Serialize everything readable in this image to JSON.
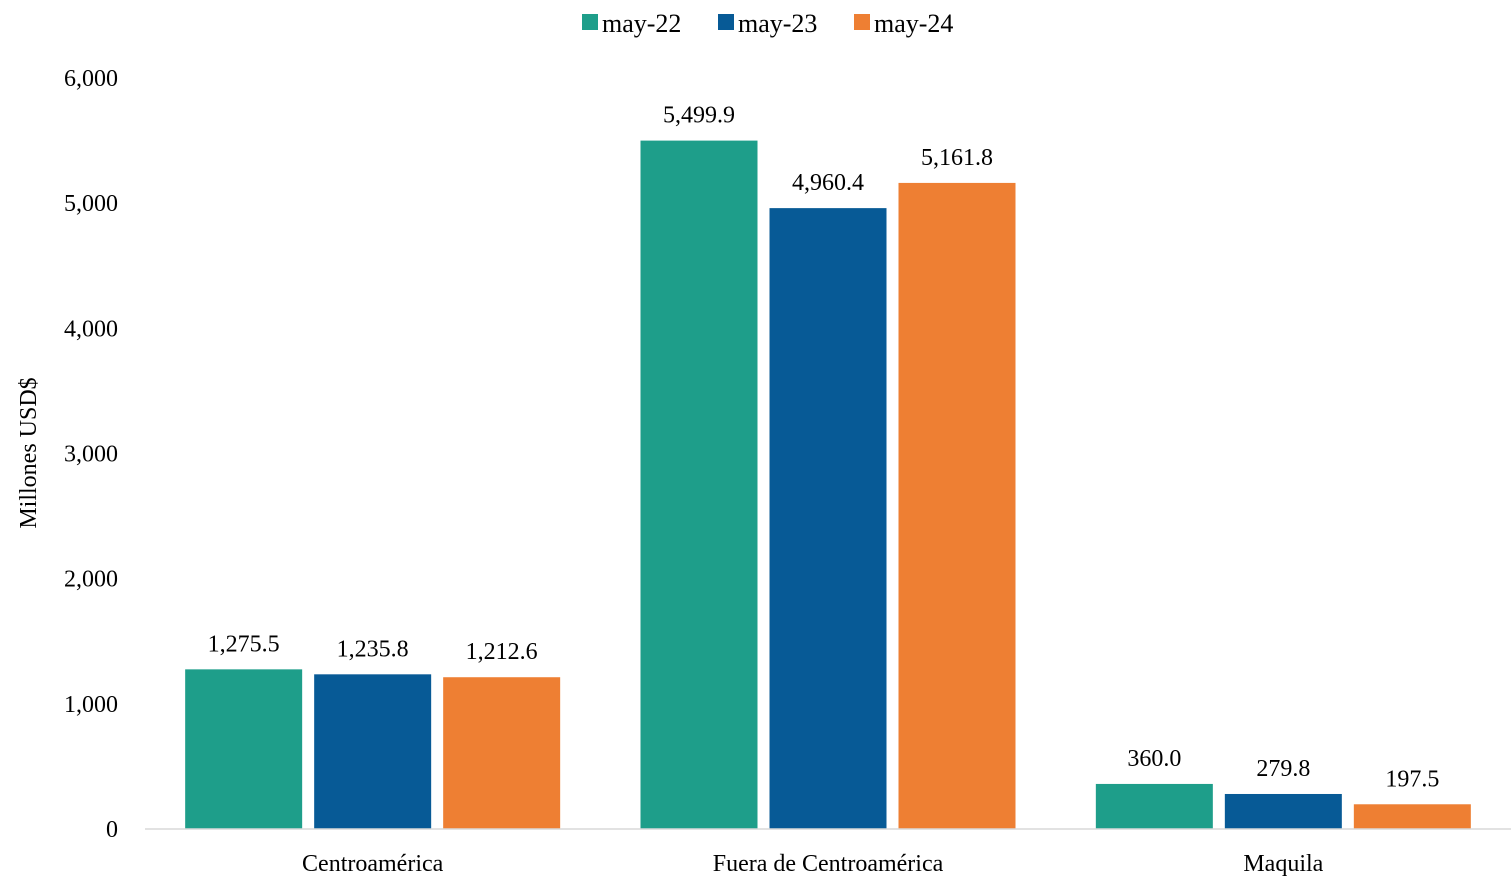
{
  "chart_data": {
    "type": "bar",
    "categories": [
      "Centroamérica",
      "Fuera de Centroamérica",
      "Maquila"
    ],
    "series": [
      {
        "name": "may-22",
        "values": [
          1275.5,
          5499.9,
          360.0
        ],
        "labels": [
          "1,275.5",
          "5,499.9",
          "360.0"
        ],
        "color": "#1e9e8a"
      },
      {
        "name": "may-23",
        "values": [
          1235.8,
          4960.4,
          279.8
        ],
        "labels": [
          "1,235.8",
          "4,960.4",
          "279.8"
        ],
        "color": "#075a96"
      },
      {
        "name": "may-24",
        "values": [
          1212.6,
          5161.8,
          197.5
        ],
        "labels": [
          "1,212.6",
          "5,161.8",
          "197.5"
        ],
        "color": "#ee7f33"
      }
    ],
    "title": "",
    "xlabel": "",
    "ylabel": "Millones USD$",
    "ylim": [
      0,
      6000
    ],
    "yticks": [
      0,
      1000,
      2000,
      3000,
      4000,
      5000,
      6000
    ],
    "ytick_labels": [
      "0",
      "1,000",
      "2,000",
      "3,000",
      "4,000",
      "5,000",
      "6,000"
    ],
    "grid": false,
    "legend_position": "top-center",
    "axis_line_color": "#d9d9d9"
  }
}
